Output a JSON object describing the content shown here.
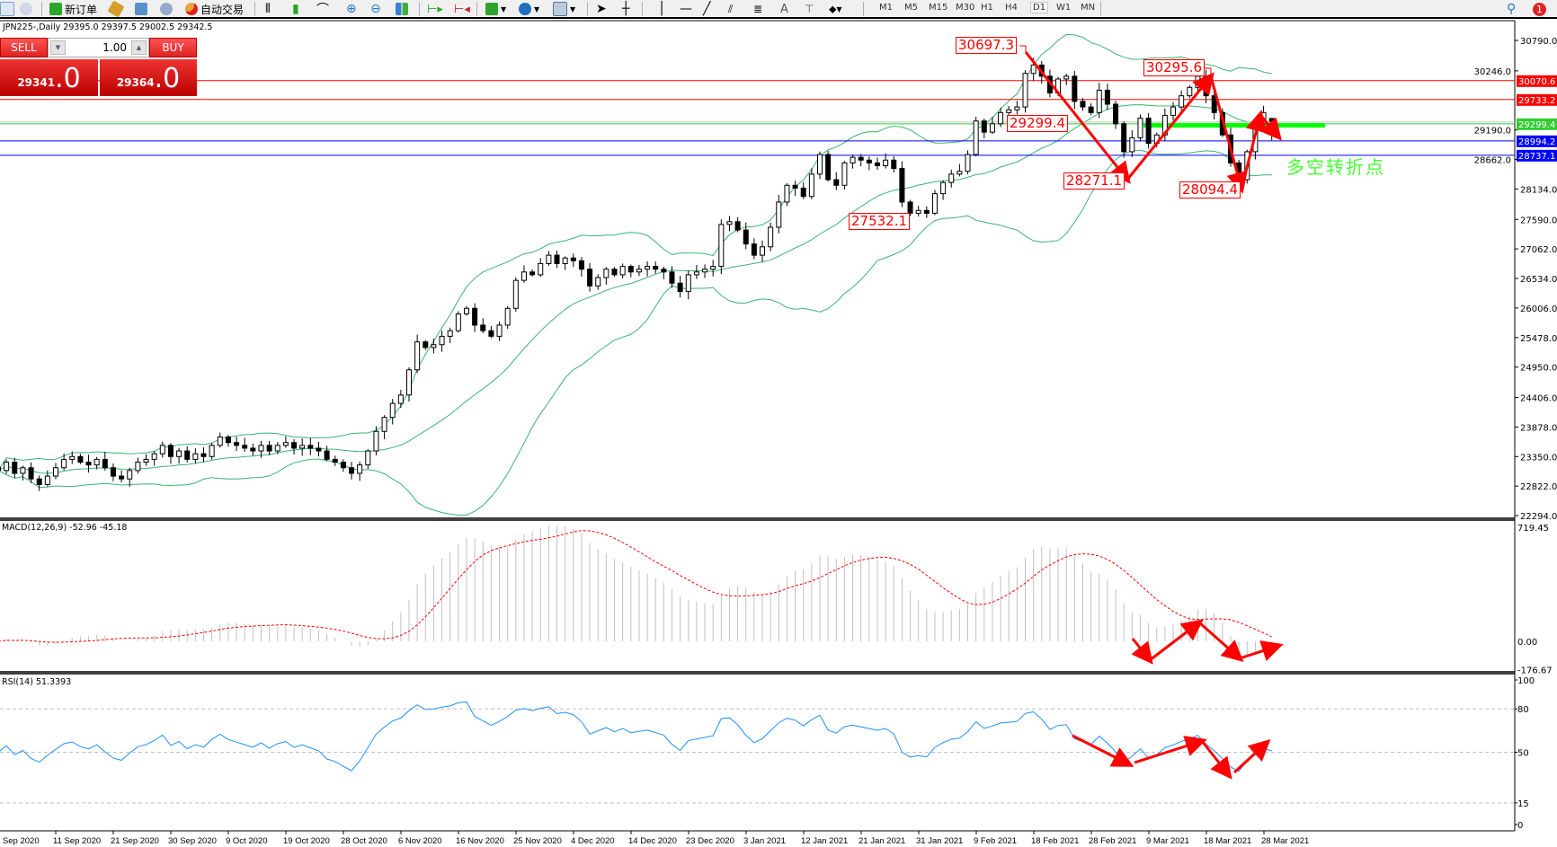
{
  "toolbar": {
    "new_order": "新订单",
    "auto_trading": "自动交易",
    "timeframes": [
      "M1",
      "M5",
      "M15",
      "M30",
      "H1",
      "H4",
      "D1",
      "W1",
      "MN"
    ],
    "active_timeframe": "D1",
    "notification_count": "1"
  },
  "chart": {
    "symbol_info": "JPN225-,Daily  29395.0 29397.5 29002.5 29342.5"
  },
  "trade_panel": {
    "sell_label": "SELL",
    "buy_label": "BUY",
    "lot": "1.00",
    "sell_price_main": "29341",
    "sell_price_frac": ".0",
    "buy_price_main": "29364",
    "buy_price_frac": ".0"
  },
  "price_axis": {
    "labels": [
      "30790.0",
      "30246.0",
      "29190.0",
      "28662.0",
      "28134.0",
      "27590.0",
      "27062.0",
      "26534.0",
      "26006.0",
      "25478.0",
      "24950.0",
      "24406.0",
      "23878.0",
      "23350.0",
      "22822.0",
      "22294.0"
    ]
  },
  "hlines": [
    {
      "price": "30070.6",
      "color": "#ff0000"
    },
    {
      "price": "29733.2",
      "color": "#ff0000"
    },
    {
      "price": "29299.4",
      "color": "#33cc33"
    },
    {
      "price": "28994.2",
      "color": "#0000ff"
    },
    {
      "price": "28737.1",
      "color": "#0000ff"
    }
  ],
  "annotations": {
    "labels": [
      "30697.3",
      "30295.6",
      "29299.4",
      "28271.1",
      "28094.4",
      "27532.1"
    ],
    "text": "多空转折点",
    "arrow_color": "#ff0000",
    "highlight_color": "#00ff00"
  },
  "macd": {
    "title": "MACD(12,26,9) -52.96 -45.18",
    "axis": [
      "719.45",
      "0.00",
      "-176.67"
    ]
  },
  "rsi": {
    "title": "RSI(14) 51.3393",
    "axis": [
      "100",
      "80",
      "50",
      "15",
      "0"
    ],
    "levels": [
      80,
      50,
      15
    ]
  },
  "time_axis": {
    "labels": [
      "2 Sep 2020",
      "11 Sep 2020",
      "21 Sep 2020",
      "30 Sep 2020",
      "9 Oct 2020",
      "19 Oct 2020",
      "28 Oct 2020",
      "6 Nov 2020",
      "16 Nov 2020",
      "25 Nov 2020",
      "4 Dec 2020",
      "14 Dec 2020",
      "23 Dec 2020",
      "3 Jan 2021",
      "12 Jan 2021",
      "21 Jan 2021",
      "31 Jan 2021",
      "9 Feb 2021",
      "18 Feb 2021",
      "28 Feb 2021",
      "9 Mar 2021",
      "18 Mar 2021",
      "28 Mar 2021"
    ]
  },
  "chart_data": {
    "type": "candlestick",
    "symbol": "JPN225-",
    "timeframe": "Daily",
    "closes": [
      23100,
      23250,
      23050,
      23150,
      22950,
      22850,
      23000,
      23150,
      23300,
      23350,
      23250,
      23200,
      23300,
      23150,
      23000,
      22950,
      23100,
      23250,
      23300,
      23400,
      23550,
      23350,
      23450,
      23300,
      23400,
      23350,
      23550,
      23700,
      23600,
      23550,
      23500,
      23450,
      23550,
      23450,
      23550,
      23600,
      23500,
      23550,
      23500,
      23450,
      23300,
      23250,
      23150,
      23050,
      23200,
      23450,
      23800,
      24050,
      24300,
      24450,
      24900,
      25400,
      25300,
      25350,
      25500,
      25600,
      25900,
      26000,
      25700,
      25600,
      25500,
      25700,
      26000,
      26500,
      26650,
      26600,
      26800,
      26950,
      26800,
      26900,
      26850,
      26700,
      26400,
      26550,
      26700,
      26600,
      26750,
      26650,
      26700,
      26750,
      26700,
      26650,
      26450,
      26300,
      26600,
      26650,
      26700,
      26750,
      27500,
      27550,
      27400,
      27150,
      26950,
      27100,
      27450,
      27900,
      28200,
      28150,
      28000,
      28400,
      28750,
      28300,
      28200,
      28600,
      28700,
      28650,
      28600,
      28550,
      28650,
      28500,
      27900,
      27700,
      27750,
      27700,
      28050,
      28250,
      28400,
      28450,
      28750,
      29350,
      29150,
      29300,
      29500,
      29550,
      29600,
      30200,
      30350,
      30150,
      29850,
      30100,
      30150,
      29700,
      29600,
      29500,
      29900,
      29650,
      29300,
      28800,
      29050,
      29400,
      28950,
      29100,
      29450,
      29600,
      29800,
      29950,
      30150,
      29800,
      29500,
      29100,
      28600,
      28300,
      28800,
      29300,
      29500,
      29342.5
    ],
    "last_bar": {
      "open": 29395.0,
      "high": 29397.5,
      "low": 29002.5,
      "close": 29342.5
    },
    "indicators": [
      "Bollinger Bands(20,2)",
      "MACD(12,26,9)",
      "RSI(14)"
    ],
    "price_range": [
      22294.0,
      30790.0
    ]
  }
}
